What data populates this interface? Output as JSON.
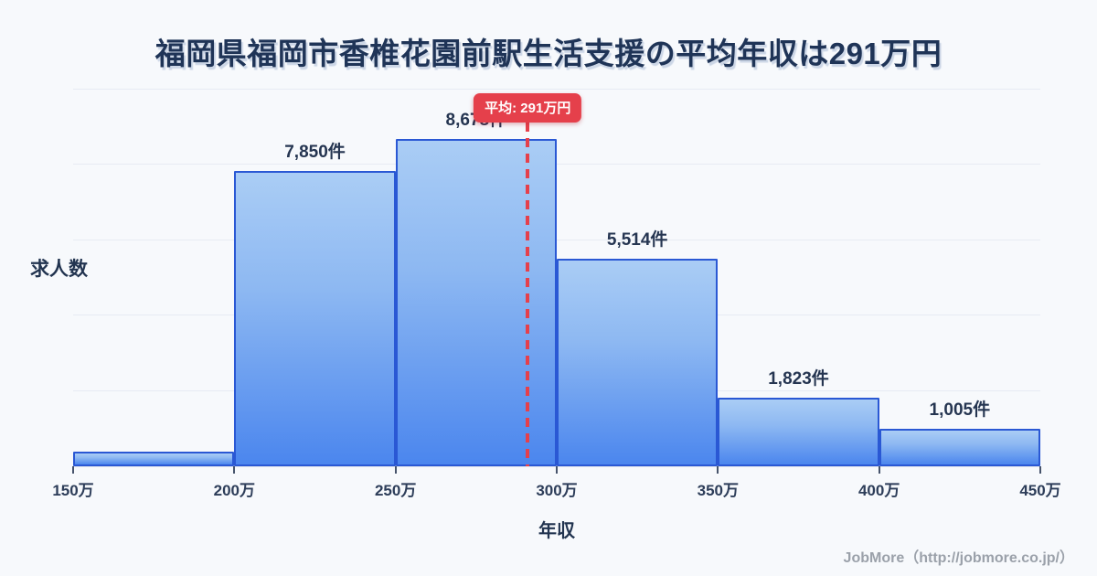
{
  "title": "福岡県福岡市香椎花園前駅生活支援の平均年収は291万円",
  "mean_badge": {
    "label": "平均: 291万円"
  },
  "axis": {
    "y_label": "求人数",
    "x_label": "年収"
  },
  "footer": {
    "credit": "JobMore（http://jobmore.co.jp/）"
  },
  "colors": {
    "background": "#f7f9fc",
    "title_text": "#1f3457",
    "bar_border": "#2a58d4",
    "bar_fill_top": "#aacdf5",
    "bar_fill_bottom": "#4b86ee",
    "mean_red": "#e5404b",
    "gridline": "#e7ebf3",
    "label_text": "#253551",
    "credit_text": "#9ba1aa"
  },
  "chart_data": {
    "type": "bar",
    "title": "福岡県福岡市香椎花園前駅生活支援の平均年収は291万円",
    "xlabel": "年収",
    "ylabel": "求人数",
    "bin_edges": [
      150,
      200,
      250,
      300,
      350,
      400,
      450
    ],
    "bin_edge_labels": [
      "150万",
      "200万",
      "250万",
      "300万",
      "350万",
      "400万",
      "450万"
    ],
    "values": [
      400,
      7850,
      8678,
      5514,
      1823,
      1005
    ],
    "bar_labels": [
      "",
      "7,850件",
      "8,678件",
      "5,514件",
      "1,823件",
      "1,005件"
    ],
    "mean": 291,
    "mean_label": "平均: 291万円",
    "x_range": [
      150,
      450
    ],
    "ylim": [
      0,
      10000
    ],
    "gridline_step": 2000,
    "grid": true,
    "legend": false
  }
}
